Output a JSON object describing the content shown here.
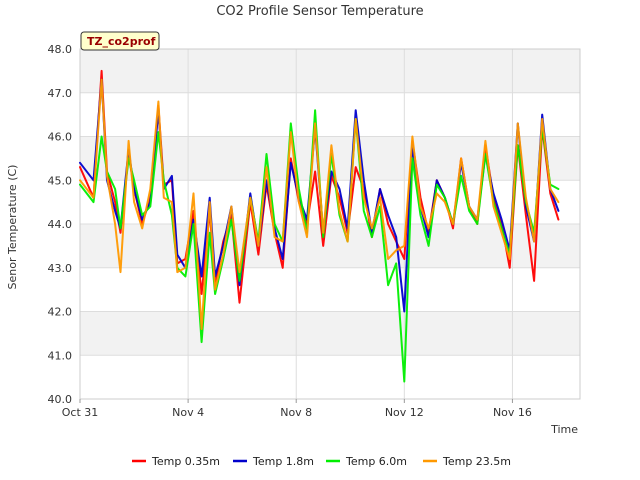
{
  "chart_data": {
    "type": "line",
    "title": "CO2 Profile Sensor Temperature",
    "badge": "TZ_co2prof",
    "xlabel": "Time",
    "ylabel": "Senor Temperature (C)",
    "ylim": [
      40.0,
      48.0
    ],
    "xlim_days": [
      0,
      18.5
    ],
    "y_ticks": [
      "40.0",
      "41.0",
      "42.0",
      "43.0",
      "44.0",
      "45.0",
      "46.0",
      "47.0",
      "48.0"
    ],
    "x_ticks": [
      {
        "label": "Oct 31",
        "day": 0
      },
      {
        "label": "Nov 4",
        "day": 4
      },
      {
        "label": "Nov 8",
        "day": 8
      },
      {
        "label": "Nov 12",
        "day": 12
      },
      {
        "label": "Nov 16",
        "day": 16
      }
    ],
    "x_day": [
      0,
      0.5,
      0.8,
      1.0,
      1.3,
      1.5,
      1.8,
      2.0,
      2.3,
      2.6,
      2.9,
      3.1,
      3.4,
      3.6,
      3.9,
      4.2,
      4.5,
      4.8,
      5.0,
      5.3,
      5.6,
      5.9,
      6.3,
      6.6,
      6.9,
      7.2,
      7.5,
      7.8,
      8.1,
      8.4,
      8.7,
      9.0,
      9.3,
      9.6,
      9.9,
      10.2,
      10.5,
      10.8,
      11.1,
      11.4,
      11.7,
      12.0,
      12.3,
      12.6,
      12.9,
      13.2,
      13.5,
      13.8,
      14.1,
      14.4,
      14.7,
      15.0,
      15.3,
      15.6,
      15.9,
      16.2,
      16.5,
      16.8,
      17.1,
      17.4,
      17.7
    ],
    "series": [
      {
        "name": "Temp 0.35m",
        "color": "#ff0000",
        "values": [
          45.3,
          44.6,
          47.5,
          45.2,
          44.5,
          43.8,
          45.6,
          44.8,
          44.0,
          44.6,
          46.7,
          44.9,
          45.0,
          43.1,
          43.2,
          44.3,
          42.4,
          44.3,
          42.6,
          43.6,
          44.2,
          42.2,
          44.5,
          43.3,
          44.9,
          43.8,
          43.0,
          45.5,
          44.5,
          44.0,
          45.2,
          43.5,
          45.1,
          44.6,
          43.8,
          45.3,
          44.8,
          43.7,
          44.8,
          44.0,
          43.6,
          43.2,
          45.9,
          44.6,
          43.8,
          45.0,
          44.6,
          43.9,
          45.5,
          44.4,
          44.0,
          45.8,
          44.6,
          44.0,
          43.0,
          45.8,
          44.2,
          42.7,
          46.2,
          44.7,
          44.1
        ]
      },
      {
        "name": "Temp 1.8m",
        "color": "#0000cc",
        "values": [
          45.4,
          45.0,
          47.3,
          45.0,
          44.3,
          43.9,
          45.7,
          44.8,
          44.1,
          44.5,
          46.6,
          44.8,
          45.1,
          43.3,
          43.0,
          44.1,
          42.8,
          44.6,
          42.8,
          43.5,
          44.4,
          42.6,
          44.7,
          43.5,
          45.0,
          43.9,
          43.2,
          45.4,
          44.6,
          44.1,
          46.2,
          43.8,
          45.2,
          44.8,
          43.9,
          46.6,
          45.0,
          43.8,
          44.8,
          44.2,
          43.7,
          42.0,
          45.8,
          44.4,
          43.7,
          45.0,
          44.6,
          44.0,
          45.4,
          44.4,
          44.1,
          45.6,
          44.7,
          44.1,
          43.4,
          46.3,
          44.4,
          43.6,
          46.5,
          44.8,
          44.3
        ]
      },
      {
        "name": "Temp 6.0m",
        "color": "#00ee00",
        "values": [
          44.9,
          44.5,
          46.0,
          45.2,
          44.8,
          43.9,
          45.5,
          45.0,
          44.2,
          44.4,
          46.1,
          45.0,
          44.2,
          43.0,
          42.8,
          44.0,
          41.3,
          43.8,
          42.4,
          43.2,
          44.1,
          42.7,
          44.6,
          43.6,
          45.6,
          44.0,
          43.6,
          46.3,
          44.8,
          43.8,
          46.6,
          43.7,
          45.6,
          44.2,
          43.6,
          46.4,
          44.3,
          43.7,
          44.4,
          42.6,
          43.1,
          40.4,
          45.5,
          44.2,
          43.5,
          44.9,
          44.6,
          44.0,
          45.1,
          44.3,
          44.0,
          45.6,
          44.5,
          43.9,
          43.3,
          45.8,
          44.5,
          43.8,
          46.2,
          44.9,
          44.8
        ]
      },
      {
        "name": "Temp 23.5m",
        "color": "#ff9900",
        "values": [
          45.0,
          44.6,
          47.3,
          45.1,
          44.0,
          42.9,
          45.9,
          44.5,
          43.9,
          44.8,
          46.8,
          44.6,
          44.5,
          42.9,
          43.0,
          44.7,
          41.6,
          44.5,
          42.5,
          43.3,
          44.4,
          42.9,
          44.6,
          43.5,
          45.3,
          43.7,
          43.6,
          46.1,
          44.5,
          43.7,
          46.3,
          43.8,
          45.8,
          44.3,
          43.6,
          46.4,
          44.6,
          43.9,
          44.6,
          43.2,
          43.4,
          43.5,
          46.0,
          44.4,
          43.9,
          44.7,
          44.5,
          44.0,
          45.5,
          44.4,
          44.1,
          45.9,
          44.4,
          43.8,
          43.2,
          46.3,
          44.6,
          43.6,
          46.4,
          44.8,
          44.5
        ]
      }
    ]
  }
}
